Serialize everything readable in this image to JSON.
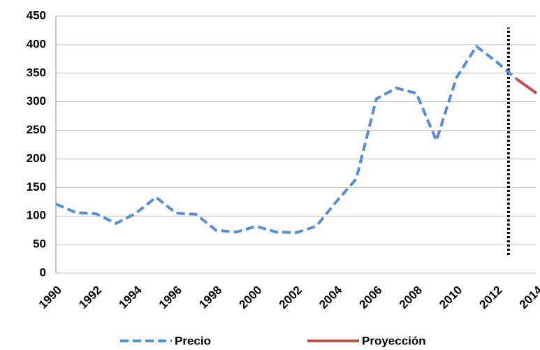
{
  "chart_data": {
    "type": "line",
    "x": [
      1990,
      1991,
      1992,
      1993,
      1994,
      1995,
      1996,
      1997,
      1998,
      1999,
      2000,
      2001,
      2002,
      2003,
      2004,
      2005,
      2006,
      2007,
      2008,
      2009,
      2010,
      2011,
      2012,
      2013,
      2014
    ],
    "series": [
      {
        "name": "Precio",
        "color": "#558ed5",
        "dashed": true,
        "values": [
          121,
          106,
          104,
          87,
          105,
          133,
          105,
          103,
          75,
          72,
          82,
          72,
          71,
          82,
          125,
          165,
          305,
          324,
          315,
          232,
          342,
          397,
          370,
          340,
          null
        ]
      },
      {
        "name": "Proyección",
        "color": "#c0504d",
        "dashed": false,
        "values": [
          null,
          null,
          null,
          null,
          null,
          null,
          null,
          null,
          null,
          null,
          null,
          null,
          null,
          null,
          null,
          null,
          null,
          null,
          null,
          null,
          null,
          null,
          null,
          340,
          315
        ]
      }
    ],
    "marker_line": {
      "x": 2012.6,
      "y": [
        32,
        430
      ]
    },
    "xlim": [
      1990,
      2014
    ],
    "xticks": [
      1990,
      1992,
      1994,
      1996,
      1998,
      2000,
      2002,
      2004,
      2006,
      2008,
      2010,
      2012,
      2014
    ],
    "ylim": [
      0,
      450
    ],
    "yticks": [
      0,
      50,
      100,
      150,
      200,
      250,
      300,
      350,
      400,
      450
    ],
    "grid": true,
    "legend": "bottom"
  }
}
